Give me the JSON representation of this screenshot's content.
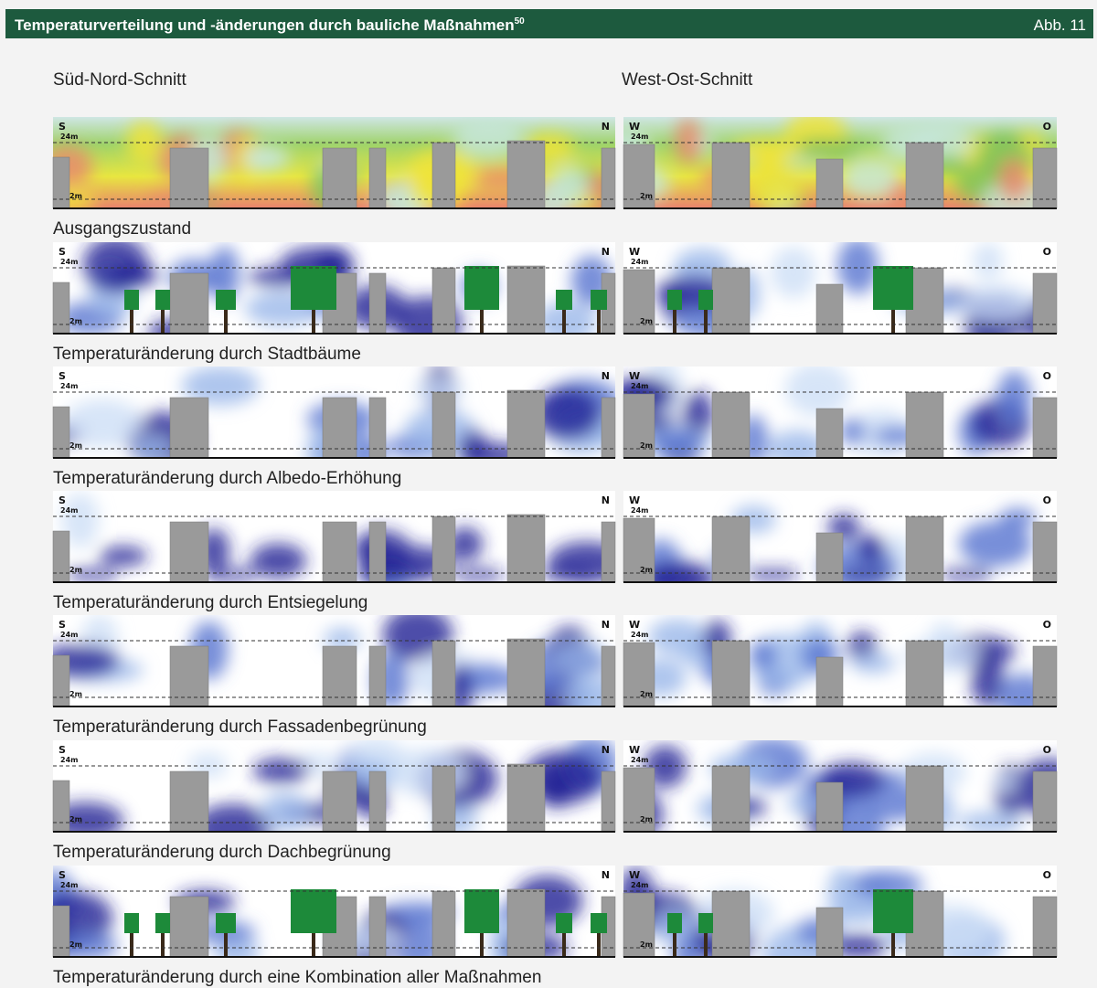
{
  "header": {
    "title": "Temperaturverteilung und -änderungen durch bauliche Maßnahmen",
    "footnote": "50",
    "figure_label": "Abb. 11"
  },
  "columns": [
    "Süd-Nord-Schnitt",
    "West-Ost-Schnitt"
  ],
  "panel_labels": {
    "south": "S",
    "north": "N",
    "west": "W",
    "east": "O",
    "upper": "24m",
    "lower": "2m"
  },
  "rows": [
    {
      "caption": "Ausgangszustand"
    },
    {
      "caption": "Temperaturänderung durch Stadtbäume"
    },
    {
      "caption": "Temperaturänderung durch Albedo-Erhöhung"
    },
    {
      "caption": "Temperaturänderung durch Entsiegelung"
    },
    {
      "caption": "Temperaturänderung durch Fassadenbegrünung"
    },
    {
      "caption": "Temperaturänderung durch Dachbegrünung"
    },
    {
      "caption": "Temperaturänderung durch eine Kombination aller Maßnahmen"
    }
  ]
}
